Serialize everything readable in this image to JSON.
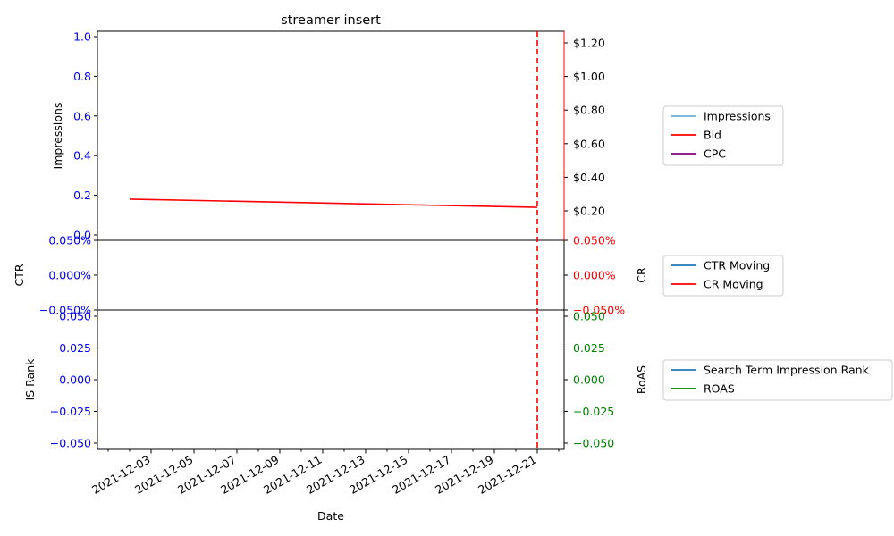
{
  "chart_data": {
    "type": "line",
    "title": "streamer insert",
    "xlabel": "Date",
    "x_ticks": [
      "2021-12-03",
      "2021-12-05",
      "2021-12-07",
      "2021-12-09",
      "2021-12-11",
      "2021-12-13",
      "2021-12-15",
      "2021-12-17",
      "2021-12-19",
      "2021-12-21"
    ],
    "x_range": [
      "2021-11-30T12:00",
      "2021-12-22T06:00"
    ],
    "marker_date": "2021-12-21",
    "colors": {
      "blue": "#0000ff",
      "red": "#ff0000",
      "green": "#008000",
      "purple": "#800080",
      "steelblue": "#1f77b4",
      "lightblue": "#6baed6"
    },
    "panels": [
      {
        "id": "top",
        "left_axis": {
          "label": "Impressions",
          "ticks": [
            "0.0",
            "0.2",
            "0.4",
            "0.6",
            "0.8",
            "1.0"
          ],
          "ylim": [
            -0.05,
            1.05
          ],
          "color": "blue"
        },
        "right_axis": {
          "label": "",
          "ticks": [
            "$0.20",
            "$0.40",
            "$0.60",
            "$0.80",
            "$1.00",
            "$1.20"
          ],
          "ylim": [
            0.0,
            1.27
          ],
          "color": "black"
        },
        "series": [
          {
            "name": "Impressions",
            "color": "lightblue",
            "axis": "left",
            "points": []
          },
          {
            "name": "Bid",
            "color": "red",
            "axis": "right",
            "points": [
              [
                "2021-12-02",
                0.25
              ],
              [
                "2021-12-21",
                0.2
              ]
            ]
          },
          {
            "name": "CPC",
            "color": "purple",
            "axis": "right",
            "points": []
          }
        ],
        "legend": [
          "Impressions",
          "Bid",
          "CPC"
        ]
      },
      {
        "id": "mid",
        "left_axis": {
          "label": "CTR",
          "ticks": [
            "−0.050%",
            "0.000%",
            "0.050%"
          ],
          "ylim": [
            -0.05,
            0.05
          ],
          "color": "blue"
        },
        "right_axis": {
          "label": "CR",
          "ticks": [
            "−0.050%",
            "0.000%",
            "0.050%"
          ],
          "ylim": [
            -0.05,
            0.05
          ],
          "color": "red"
        },
        "series": [
          {
            "name": "CTR Moving",
            "color": "steelblue",
            "axis": "left",
            "points": []
          },
          {
            "name": "CR Moving",
            "color": "red",
            "axis": "right",
            "points": []
          }
        ],
        "legend": [
          "CTR Moving",
          "CR Moving"
        ]
      },
      {
        "id": "bot",
        "left_axis": {
          "label": "IS Rank",
          "ticks": [
            "−0.050",
            "−0.025",
            "0.000",
            "0.025",
            "0.050"
          ],
          "ylim": [
            -0.055,
            0.055
          ],
          "color": "blue"
        },
        "right_axis": {
          "label": "RoAS",
          "ticks": [
            "−0.050",
            "−0.025",
            "0.000",
            "0.025",
            "0.050"
          ],
          "ylim": [
            -0.055,
            0.055
          ],
          "color": "green"
        },
        "series": [
          {
            "name": "Search Term Impression Rank",
            "color": "steelblue",
            "axis": "left",
            "points": []
          },
          {
            "name": "ROAS",
            "color": "green",
            "axis": "right",
            "points": []
          }
        ],
        "legend": [
          "Search Term Impression Rank",
          "ROAS"
        ]
      }
    ]
  }
}
